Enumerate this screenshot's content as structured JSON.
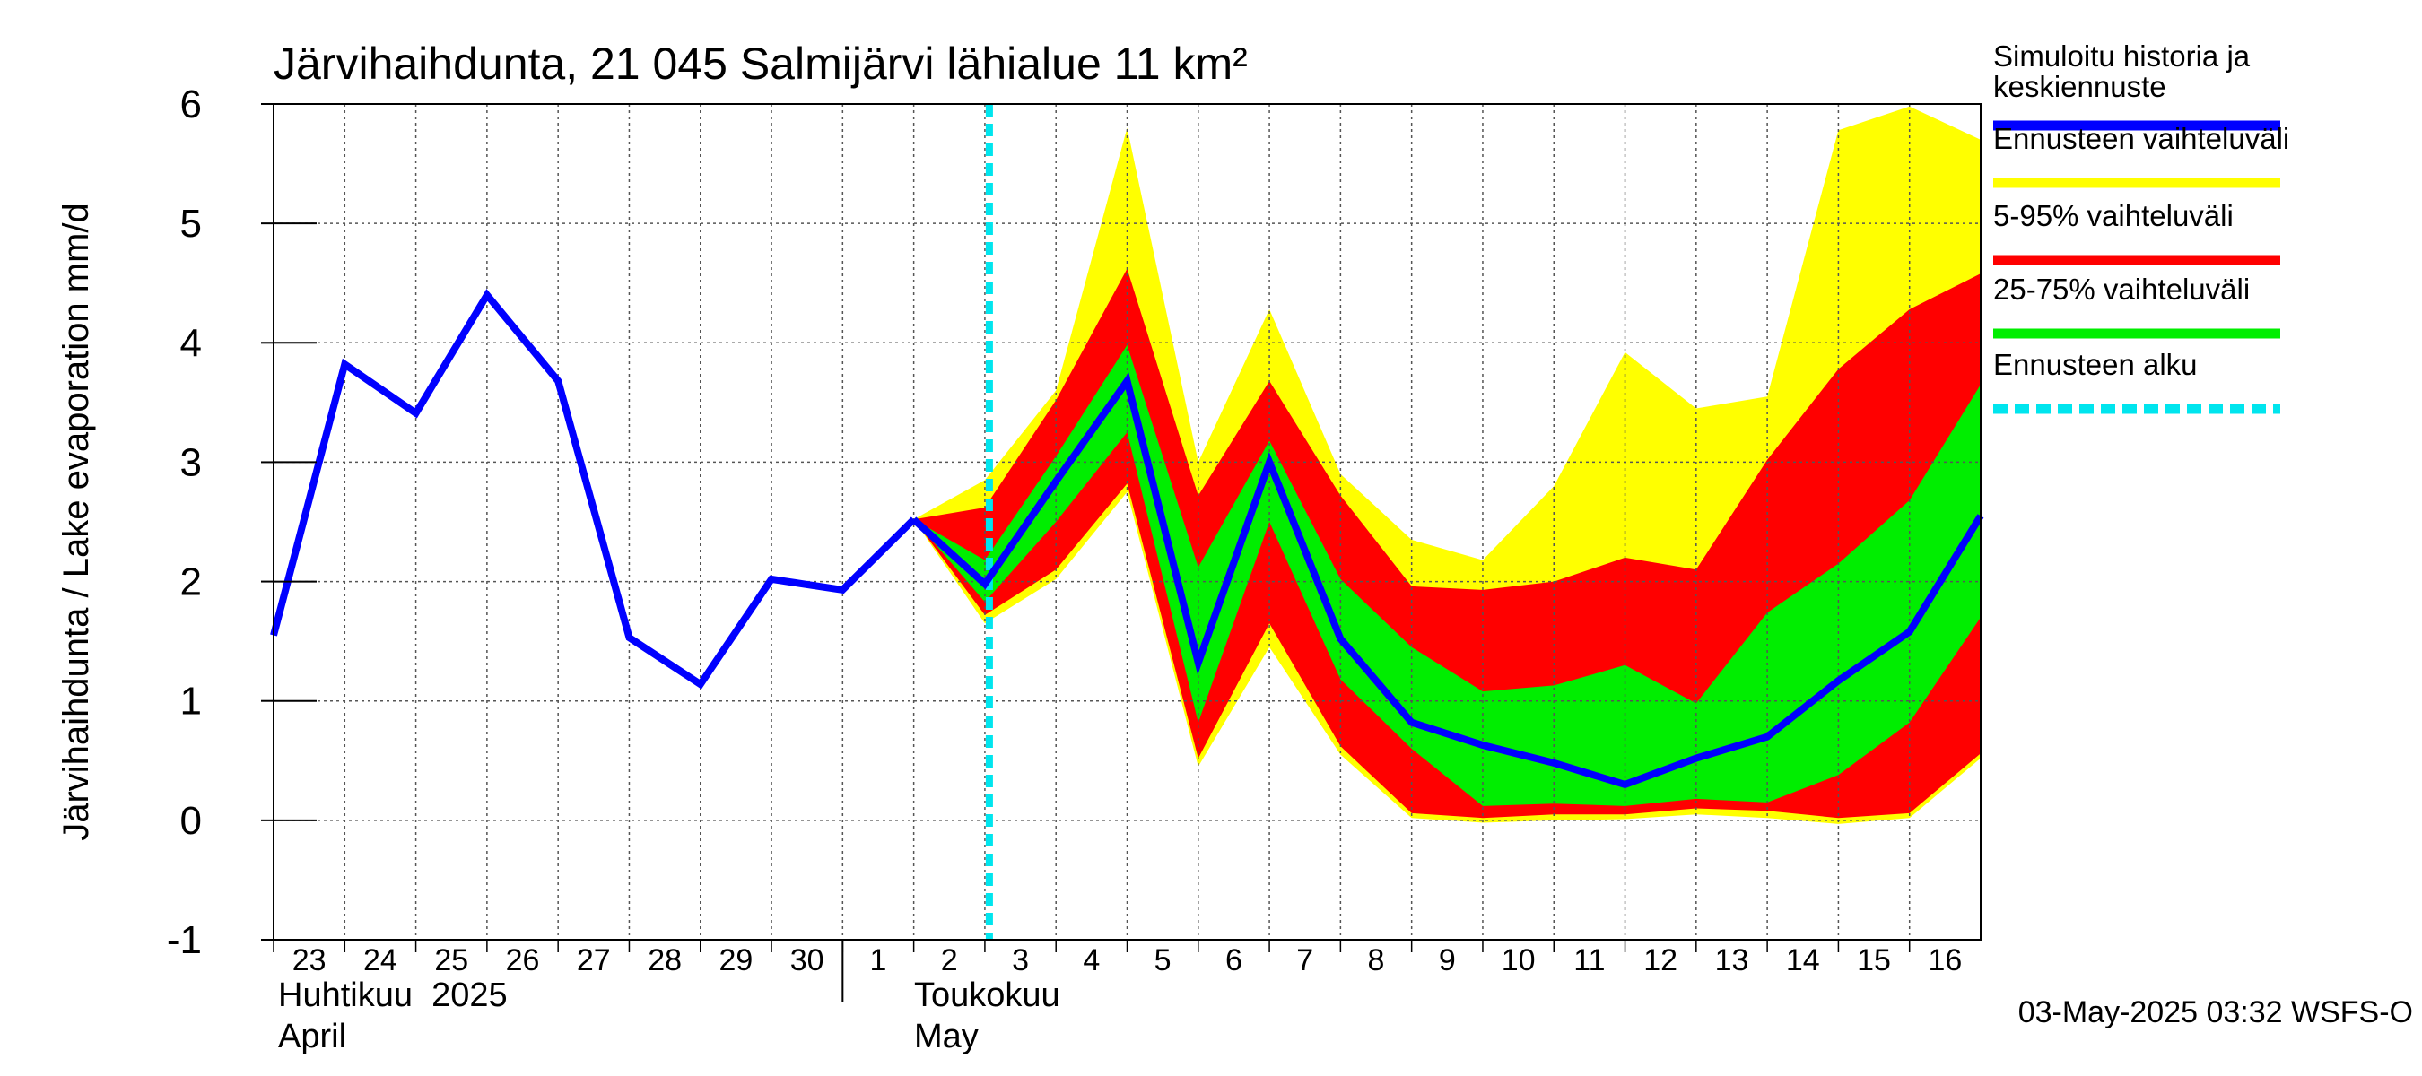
{
  "chart_data": {
    "type": "line",
    "title": "Järvihaihdunta, 21 045 Salmijärvi lähialue 11 km²",
    "ylabel": "Järvihaihdunta / Lake evaporation   mm/d",
    "ylim": [
      -1,
      6
    ],
    "yticks": [
      "6",
      "5",
      "4",
      "3",
      "2",
      "1",
      "0",
      "-1"
    ],
    "x_day_labels": [
      "23",
      "24",
      "25",
      "26",
      "27",
      "28",
      "29",
      "30",
      "1",
      "2",
      "3",
      "4",
      "5",
      "6",
      "7",
      "8",
      "9",
      "10",
      "11",
      "12",
      "13",
      "14",
      "15",
      "16"
    ],
    "month_labels": {
      "april_fi": "Huhtikuu  2025",
      "april_en": "April",
      "may_fi": "Toukokuu",
      "may_en": "May"
    },
    "forecast_start": "3",
    "history": {
      "name": "Simuloitu historia ja keskiennuste",
      "x": [
        0,
        1,
        2,
        3,
        4,
        5,
        6,
        7,
        8,
        9
      ],
      "y": [
        1.55,
        3.82,
        3.41,
        4.4,
        3.68,
        1.53,
        1.14,
        2.02,
        1.93,
        2.52
      ]
    },
    "forecast": {
      "x": [
        9,
        10,
        11,
        12,
        13,
        14,
        15,
        16,
        17,
        18,
        19,
        20,
        21,
        22,
        23,
        24
      ],
      "median": [
        2.52,
        1.98,
        2.84,
        3.68,
        1.32,
        3.0,
        1.52,
        0.82,
        0.63,
        0.48,
        0.3,
        0.52,
        0.7,
        1.17,
        1.58,
        2.55
      ],
      "p25": [
        2.52,
        1.83,
        2.5,
        3.25,
        0.82,
        2.5,
        1.18,
        0.6,
        0.12,
        0.14,
        0.12,
        0.18,
        0.15,
        0.38,
        0.82,
        1.7
      ],
      "p75": [
        2.52,
        2.18,
        3.05,
        3.98,
        2.12,
        3.18,
        2.02,
        1.45,
        1.08,
        1.13,
        1.3,
        0.98,
        1.74,
        2.15,
        2.68,
        3.65
      ],
      "p5": [
        2.52,
        1.72,
        2.1,
        2.82,
        0.52,
        1.65,
        0.62,
        0.06,
        0.02,
        0.05,
        0.05,
        0.1,
        0.08,
        0.02,
        0.06,
        0.56
      ],
      "p95": [
        2.52,
        2.62,
        3.52,
        4.62,
        2.72,
        3.68,
        2.72,
        1.96,
        1.93,
        2.0,
        2.2,
        2.1,
        3.02,
        3.78,
        4.28,
        4.58
      ],
      "min": [
        2.52,
        1.65,
        2.02,
        2.75,
        0.45,
        1.45,
        0.55,
        0.02,
        -0.02,
        0.0,
        0.01,
        0.05,
        0.02,
        -0.03,
        0.02,
        0.52
      ],
      "max": [
        2.52,
        2.85,
        3.6,
        5.8,
        3.0,
        4.28,
        2.9,
        2.35,
        2.18,
        2.8,
        3.92,
        3.45,
        3.55,
        5.78,
        5.98,
        5.7
      ]
    },
    "legend": [
      {
        "label": "Simuloitu historia ja",
        "label2": "keskiennuste",
        "color": "#0000ff",
        "style": "solid"
      },
      {
        "label": "Ennusteen vaihteluväli",
        "color": "#ffff00",
        "style": "solid"
      },
      {
        "label": "5-95% vaihteluväli",
        "color": "#ff0000",
        "style": "solid"
      },
      {
        "label": "25-75% vaihteluväli",
        "color": "#00ee00",
        "style": "solid"
      },
      {
        "label": "Ennusteen alku",
        "color": "#00e5ee",
        "style": "dashed"
      }
    ],
    "colors": {
      "history": "#0000ff",
      "range": "#ffff00",
      "p5_95": "#ff0000",
      "p25_75": "#00ee00",
      "forecast_start": "#00e5ee"
    },
    "grid": true,
    "legend_position": "right",
    "footer": "03-May-2025 03:32 WSFS-O"
  }
}
